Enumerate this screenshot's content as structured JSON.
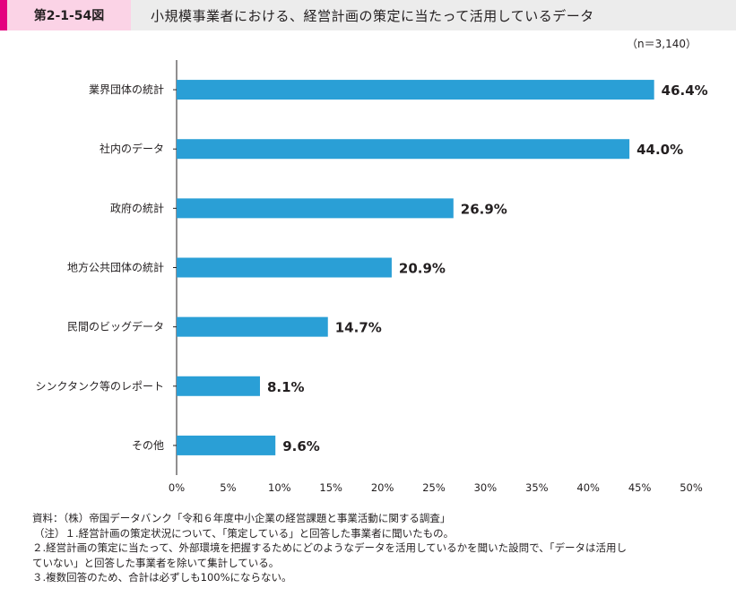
{
  "header": {
    "figure_id": "第2-1-54図",
    "title": "小規模事業者における、経営計画の策定に当たって活用しているデータ"
  },
  "sample_note": "（n＝3,140）",
  "chart_data": {
    "type": "bar",
    "orientation": "horizontal",
    "categories": [
      "業界団体の統計",
      "社内のデータ",
      "政府の統計",
      "地方公共団体の統計",
      "民間のビッグデータ",
      "シンクタンク等のレポート",
      "その他"
    ],
    "values": [
      46.4,
      44.0,
      26.9,
      20.9,
      14.7,
      8.1,
      9.6
    ],
    "value_labels": [
      "46.4%",
      "44.0%",
      "26.9%",
      "20.9%",
      "14.7%",
      "8.1%",
      "9.6%"
    ],
    "xlim": [
      0,
      50
    ],
    "x_ticks": [
      0,
      5,
      10,
      15,
      20,
      25,
      30,
      35,
      40,
      45,
      50
    ],
    "x_tick_labels": [
      "0%",
      "5%",
      "10%",
      "15%",
      "20%",
      "25%",
      "30%",
      "35%",
      "40%",
      "45%",
      "50%"
    ],
    "bar_color": "#2a9fd6",
    "grid": false
  },
  "notes": [
    "資料：（株）帝国データバンク「令和６年度中小企業の経営課題と事業活動に関する調査」",
    "（注）１.経営計画の策定状況について、「策定している」と回答した事業者に聞いたもの。",
    "２.経営計画の策定に当たって、外部環境を把握するためにどのようなデータを活用しているかを聞いた設問で、「データは活用し",
    "ていない」と回答した事業者を除いて集計している。",
    "３.複数回答のため、合計は必ずしも100%にならない。"
  ]
}
